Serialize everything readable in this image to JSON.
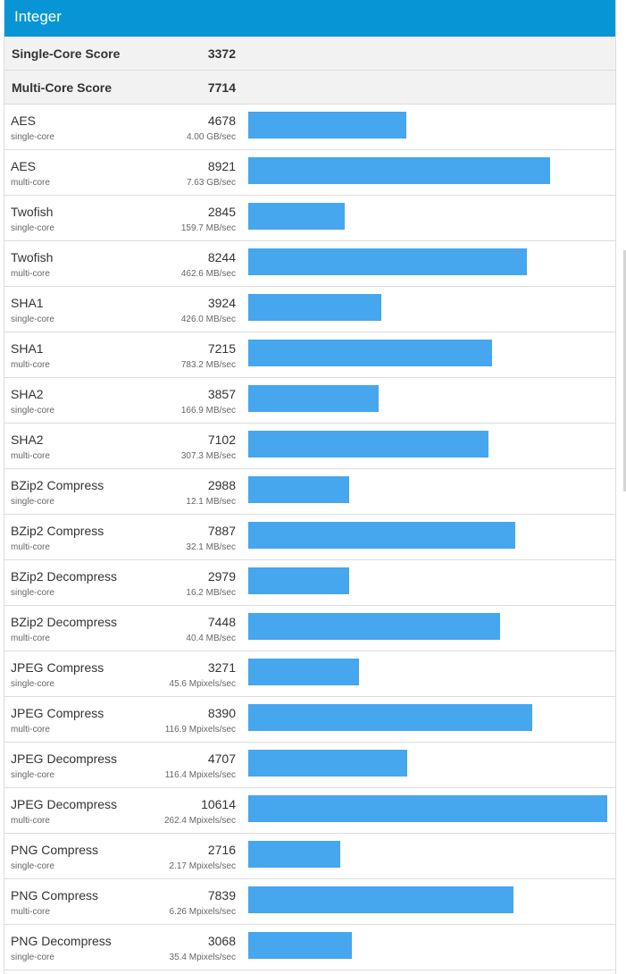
{
  "section": {
    "title": "Integer"
  },
  "summary": [
    {
      "label": "Single-Core Score",
      "value": "3372"
    },
    {
      "label": "Multi-Core Score",
      "value": "7714"
    }
  ],
  "max_score": 10614,
  "colors": {
    "header": "#0795d6",
    "bar": "#46a6ee"
  },
  "rows": [
    {
      "name": "AES",
      "mode": "single-core",
      "score": "4678",
      "rate": "4.00 GB/sec"
    },
    {
      "name": "AES",
      "mode": "multi-core",
      "score": "8921",
      "rate": "7.63 GB/sec"
    },
    {
      "name": "Twofish",
      "mode": "single-core",
      "score": "2845",
      "rate": "159.7 MB/sec"
    },
    {
      "name": "Twofish",
      "mode": "multi-core",
      "score": "8244",
      "rate": "462.6 MB/sec"
    },
    {
      "name": "SHA1",
      "mode": "single-core",
      "score": "3924",
      "rate": "426.0 MB/sec"
    },
    {
      "name": "SHA1",
      "mode": "multi-core",
      "score": "7215",
      "rate": "783.2 MB/sec"
    },
    {
      "name": "SHA2",
      "mode": "single-core",
      "score": "3857",
      "rate": "166.9 MB/sec"
    },
    {
      "name": "SHA2",
      "mode": "multi-core",
      "score": "7102",
      "rate": "307.3 MB/sec"
    },
    {
      "name": "BZip2 Compress",
      "mode": "single-core",
      "score": "2988",
      "rate": "12.1 MB/sec"
    },
    {
      "name": "BZip2 Compress",
      "mode": "multi-core",
      "score": "7887",
      "rate": "32.1 MB/sec"
    },
    {
      "name": "BZip2 Decompress",
      "mode": "single-core",
      "score": "2979",
      "rate": "16.2 MB/sec"
    },
    {
      "name": "BZip2 Decompress",
      "mode": "multi-core",
      "score": "7448",
      "rate": "40.4 MB/sec"
    },
    {
      "name": "JPEG Compress",
      "mode": "single-core",
      "score": "3271",
      "rate": "45.6 Mpixels/sec"
    },
    {
      "name": "JPEG Compress",
      "mode": "multi-core",
      "score": "8390",
      "rate": "116.9 Mpixels/sec"
    },
    {
      "name": "JPEG Decompress",
      "mode": "single-core",
      "score": "4707",
      "rate": "116.4 Mpixels/sec"
    },
    {
      "name": "JPEG Decompress",
      "mode": "multi-core",
      "score": "10614",
      "rate": "262.4 Mpixels/sec"
    },
    {
      "name": "PNG Compress",
      "mode": "single-core",
      "score": "2716",
      "rate": "2.17 Mpixels/sec"
    },
    {
      "name": "PNG Compress",
      "mode": "multi-core",
      "score": "7839",
      "rate": "6.26 Mpixels/sec"
    },
    {
      "name": "PNG Decompress",
      "mode": "single-core",
      "score": "3068",
      "rate": "35.4 Mpixels/sec"
    }
  ]
}
